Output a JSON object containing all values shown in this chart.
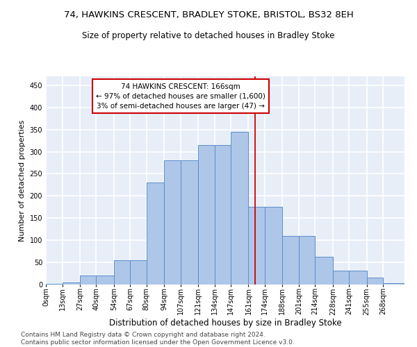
{
  "title": "74, HAWKINS CRESCENT, BRADLEY STOKE, BRISTOL, BS32 8EH",
  "subtitle": "Size of property relative to detached houses in Bradley Stoke",
  "xlabel": "Distribution of detached houses by size in Bradley Stoke",
  "ylabel": "Number of detached properties",
  "bin_labels": [
    "0sqm",
    "13sqm",
    "27sqm",
    "40sqm",
    "54sqm",
    "67sqm",
    "80sqm",
    "94sqm",
    "107sqm",
    "121sqm",
    "134sqm",
    "147sqm",
    "161sqm",
    "174sqm",
    "188sqm",
    "201sqm",
    "214sqm",
    "228sqm",
    "241sqm",
    "255sqm",
    "268sqm"
  ],
  "bar_heights": [
    2,
    5,
    20,
    20,
    55,
    55,
    230,
    280,
    280,
    315,
    315,
    345,
    175,
    175,
    110,
    110,
    63,
    32,
    32,
    16,
    3
  ],
  "bar_color": "#aec6e8",
  "bar_edge_color": "#5b8fc9",
  "vline_x": 166,
  "vline_color": "#cc0000",
  "annotation_text": "74 HAWKINS CRESCENT: 166sqm\n← 97% of detached houses are smaller (1,600)\n3% of semi-detached houses are larger (47) →",
  "annotation_box_color": "#cc0000",
  "annotation_bg": "#ffffff",
  "ylim": [
    0,
    470
  ],
  "bin_edges": [
    0,
    13,
    27,
    40,
    54,
    67,
    80,
    94,
    107,
    121,
    134,
    147,
    161,
    174,
    188,
    201,
    214,
    228,
    241,
    255,
    268,
    285
  ],
  "background_color": "#e8eef8",
  "grid_color": "#ffffff",
  "footer_text": "Contains HM Land Registry data © Crown copyright and database right 2024.\nContains public sector information licensed under the Open Government Licence v3.0.",
  "title_fontsize": 9.5,
  "subtitle_fontsize": 8.5,
  "xlabel_fontsize": 8.5,
  "ylabel_fontsize": 8,
  "tick_fontsize": 7,
  "annotation_fontsize": 7.5,
  "footer_fontsize": 6.5
}
